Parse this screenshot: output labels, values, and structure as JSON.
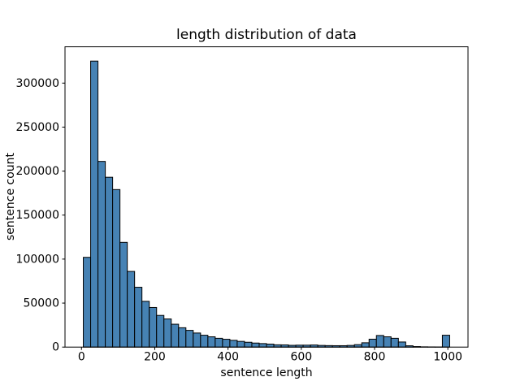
{
  "chart_data": {
    "type": "bar",
    "subtype": "histogram",
    "title": "length distribution of data",
    "xlabel": "sentence length",
    "ylabel": "sentence count",
    "bin_start": 5,
    "bin_width": 20,
    "counts": [
      102000,
      325000,
      211000,
      193000,
      179000,
      119000,
      86000,
      68000,
      52000,
      45000,
      36000,
      32000,
      26000,
      22000,
      19000,
      16000,
      13500,
      11700,
      10000,
      8900,
      7700,
      6500,
      5500,
      4600,
      4000,
      3400,
      2600,
      2500,
      2000,
      2200,
      2200,
      2400,
      1900,
      1700,
      1600,
      1600,
      1900,
      2800,
      4900,
      9000,
      13200,
      11700,
      10000,
      5800,
      1500,
      600,
      300,
      200,
      150,
      13500
    ],
    "x_ticks": [
      0,
      200,
      400,
      600,
      800,
      1000
    ],
    "y_ticks": [
      0,
      50000,
      100000,
      150000,
      200000,
      250000,
      300000
    ],
    "xlim": [
      -45,
      1055
    ],
    "ylim": [
      0,
      341250
    ],
    "grid": false,
    "legend": null,
    "bar_color": "#4682b4",
    "bar_edge_color": "#000000",
    "axis_color": "#000000",
    "background_color": "#ffffff"
  }
}
